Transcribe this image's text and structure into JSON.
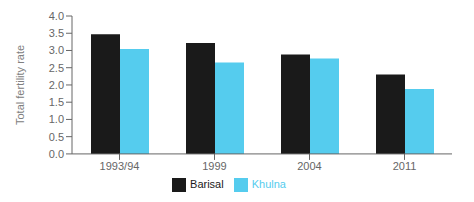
{
  "chart_data": {
    "type": "bar",
    "categories": [
      "1993/94",
      "1999",
      "2004",
      "2011"
    ],
    "series": [
      {
        "name": "Barisal",
        "color": "#1a1a1a",
        "values": [
          3.47,
          3.22,
          2.88,
          2.3
        ]
      },
      {
        "name": "Khulna",
        "color": "#55ccee",
        "values": [
          3.04,
          2.65,
          2.77,
          1.88
        ]
      }
    ],
    "ylabel": "Total fertility rate",
    "ylim": [
      0,
      4
    ],
    "yticks": [
      {
        "value": 0,
        "label": "0.0"
      },
      0.5,
      {
        "value": 1,
        "label": "1.0"
      },
      1.5,
      {
        "value": 2,
        "label": "2.0"
      },
      2.5,
      {
        "value": 3,
        "label": "3.0"
      },
      3.5,
      {
        "value": 4,
        "label": "4.0"
      }
    ],
    "grid": false,
    "legend": "bottom"
  }
}
